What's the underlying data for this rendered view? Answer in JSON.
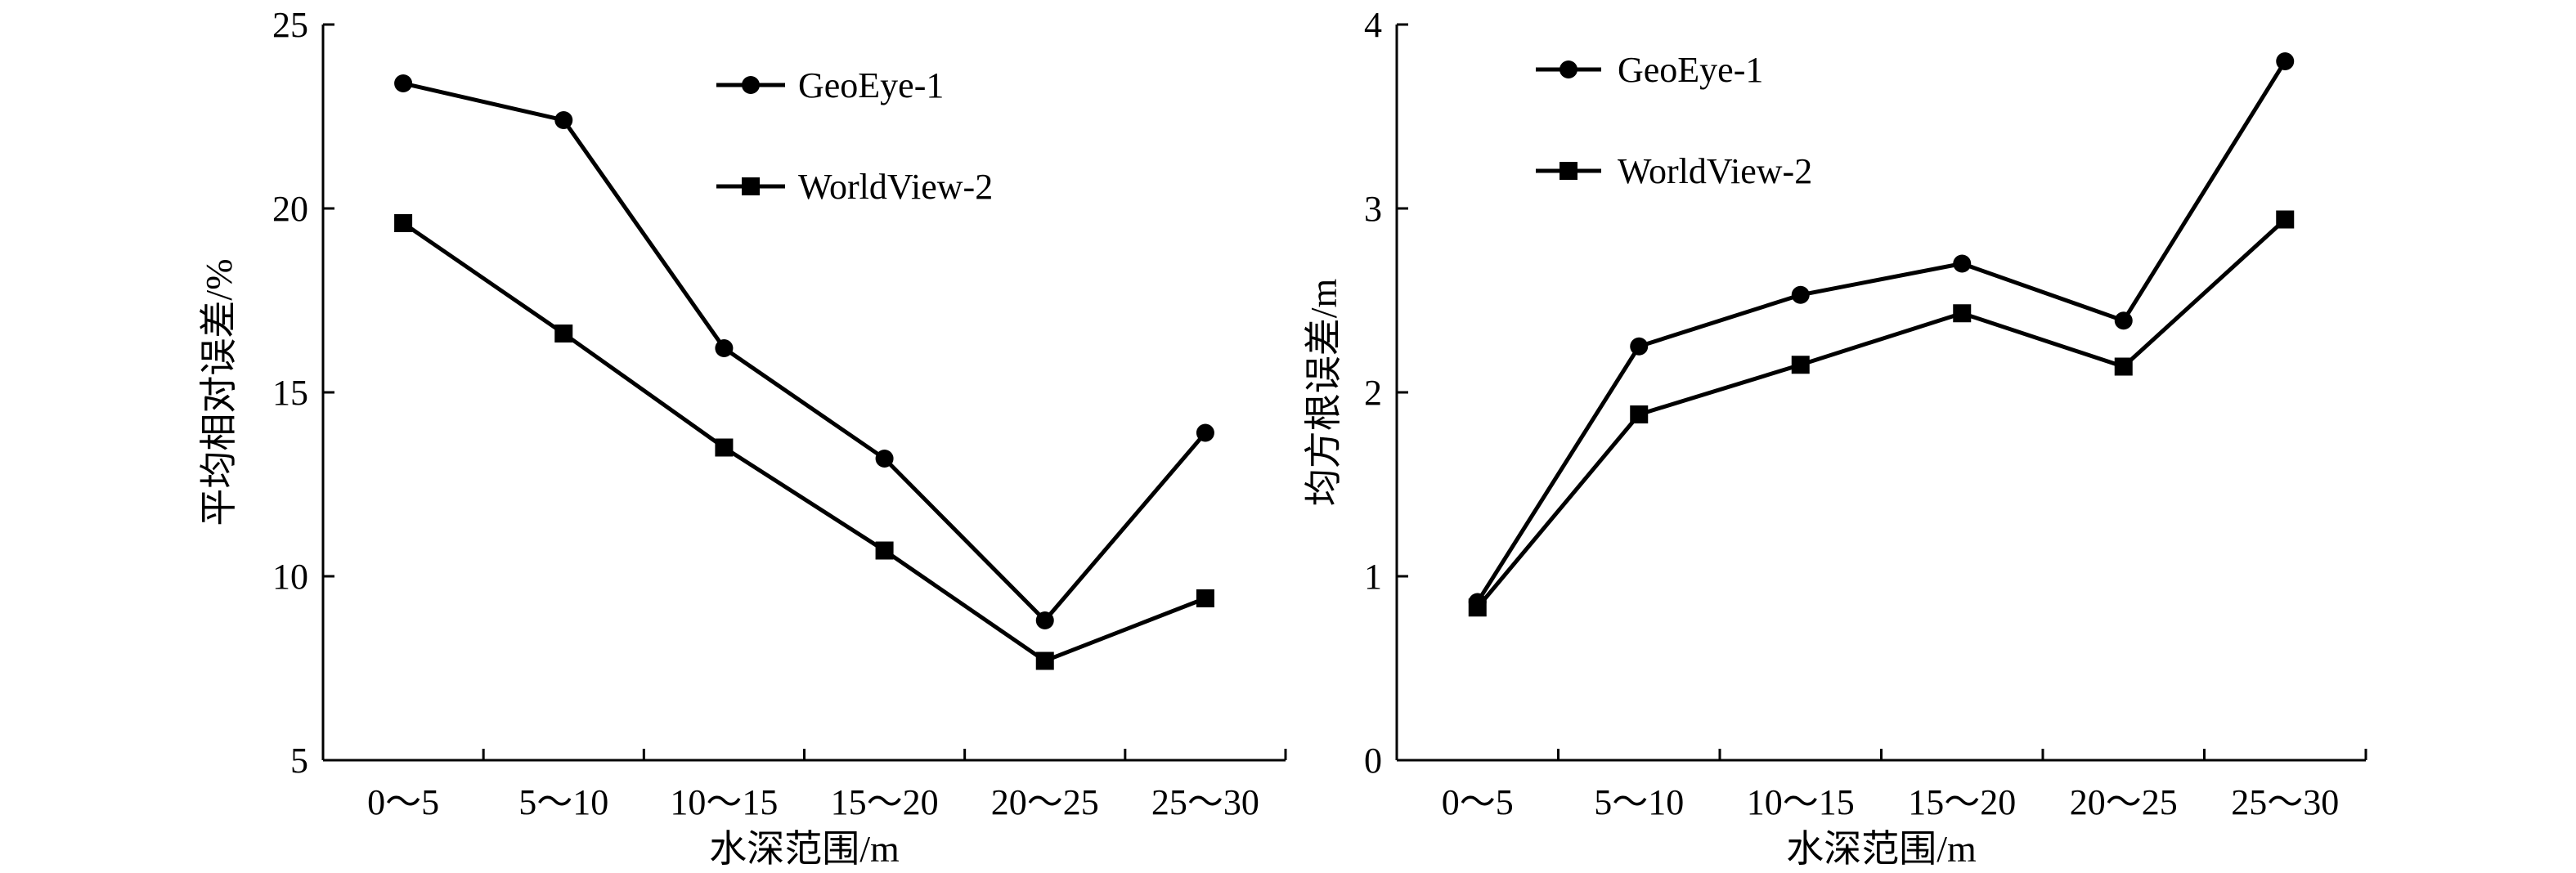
{
  "chart_data": [
    {
      "type": "line",
      "title": "",
      "xlabel": "水深范围/m",
      "ylabel": "平均相对误差/%",
      "categories": [
        "0～5",
        "5～10",
        "10～15",
        "15～20",
        "20～25",
        "25～30"
      ],
      "ylim": [
        5,
        25
      ],
      "yticks": [
        5,
        10,
        15,
        20,
        25
      ],
      "legend_position": "top-center",
      "grid": false,
      "series": [
        {
          "name": "GeoEye-1",
          "marker": "circle",
          "values": [
            23.4,
            22.4,
            16.2,
            13.2,
            8.8,
            13.9
          ]
        },
        {
          "name": "WorldView-2",
          "marker": "square",
          "values": [
            19.6,
            16.6,
            13.5,
            10.7,
            7.7,
            9.4
          ]
        }
      ]
    },
    {
      "type": "line",
      "title": "",
      "xlabel": "水深范围/m",
      "ylabel": "均方根误差/m",
      "categories": [
        "0～5",
        "5～10",
        "10～15",
        "15～20",
        "20～25",
        "25～30"
      ],
      "ylim": [
        0,
        4
      ],
      "yticks": [
        0,
        1,
        2,
        3,
        4
      ],
      "legend_position": "top-left",
      "grid": false,
      "series": [
        {
          "name": "GeoEye-1",
          "marker": "circle",
          "values": [
            0.86,
            2.25,
            2.53,
            2.7,
            2.39,
            3.8
          ]
        },
        {
          "name": "WorldView-2",
          "marker": "square",
          "values": [
            0.83,
            1.88,
            2.15,
            2.43,
            2.14,
            2.94
          ]
        }
      ]
    }
  ]
}
